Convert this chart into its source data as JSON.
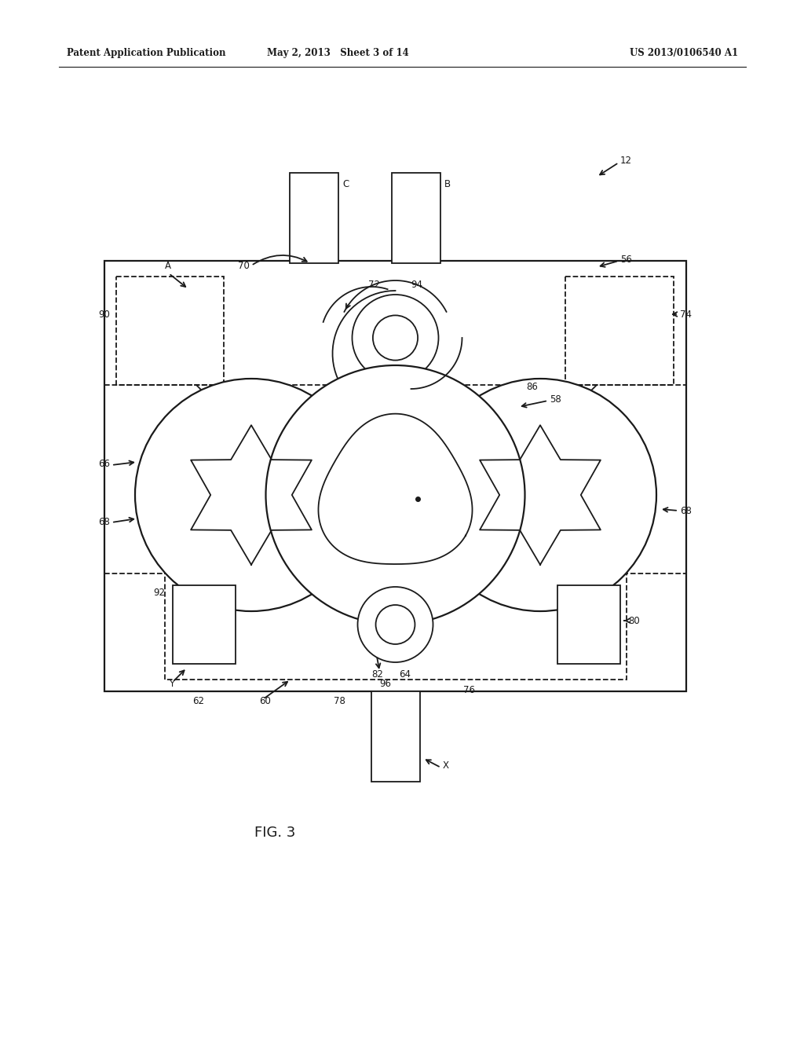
{
  "title_left": "Patent Application Publication",
  "title_mid": "May 2, 2013   Sheet 3 of 14",
  "title_right": "US 2013/0106540 A1",
  "fig_label": "FIG. 3",
  "background": "#ffffff",
  "line_color": "#1a1a1a",
  "label_fontsize": 8.5,
  "header_fontsize": 8.5
}
